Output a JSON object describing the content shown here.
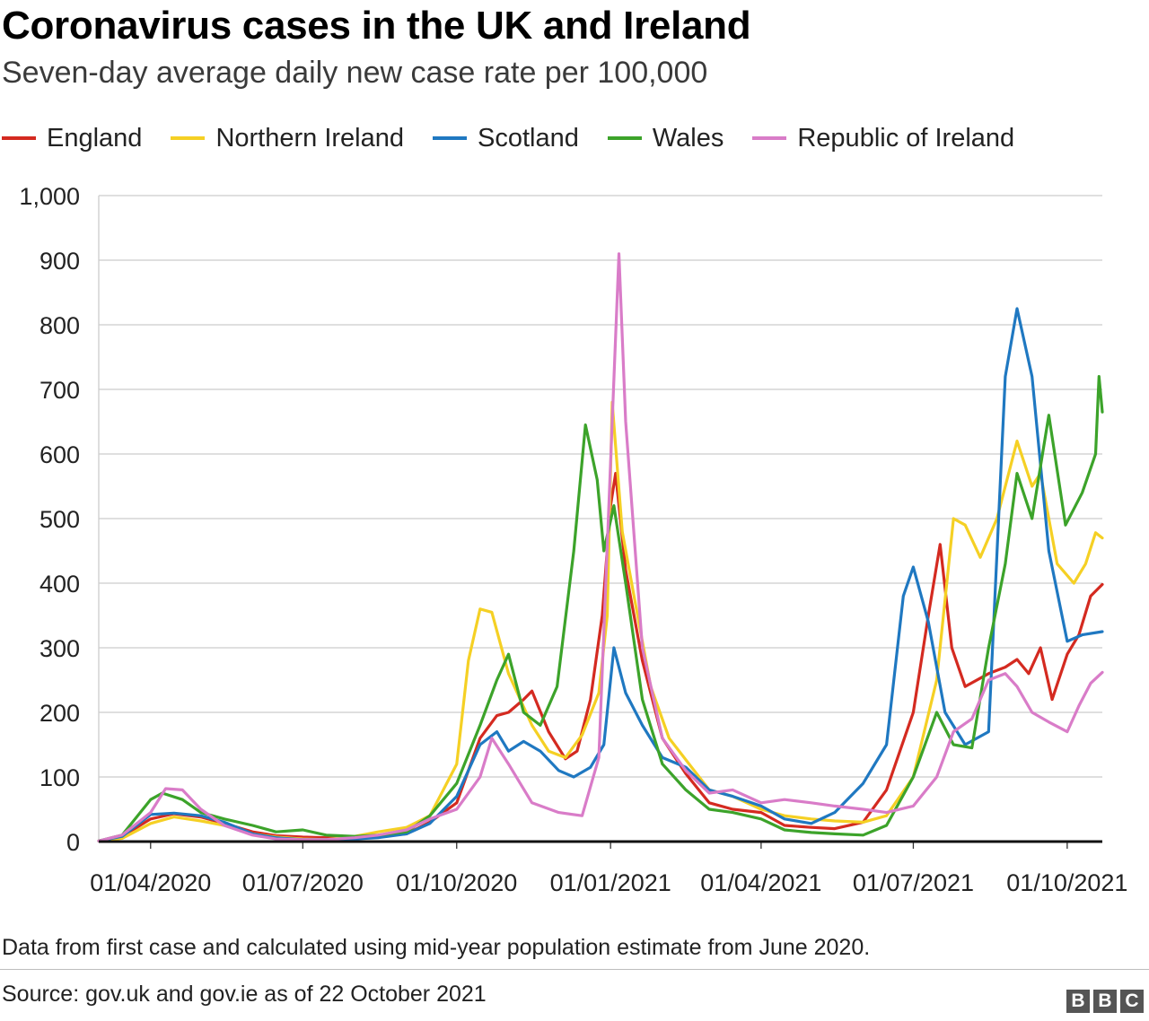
{
  "title": "Coronavirus cases in the UK and Ireland",
  "subtitle": "Seven-day average daily new case rate per 100,000",
  "note": "Data from first case and calculated using mid-year population estimate from June 2020.",
  "source": "Source: gov.uk and gov.ie as of 22 October 2021",
  "logo": [
    "B",
    "B",
    "C"
  ],
  "chart_data": {
    "type": "line",
    "grid": "horizontal",
    "legend_position": "top-left",
    "ylim": [
      0,
      1000
    ],
    "yticks": [
      0,
      100,
      200,
      300,
      400,
      500,
      600,
      700,
      800,
      900,
      1000
    ],
    "ytick_labels": [
      "0",
      "100",
      "200",
      "300",
      "400",
      "500",
      "600",
      "700",
      "800",
      "900",
      "1,000"
    ],
    "xlim": [
      "2020-03-01",
      "2021-10-22"
    ],
    "xticks": [
      "2020-04-01",
      "2020-07-01",
      "2020-10-01",
      "2021-01-01",
      "2021-04-01",
      "2021-07-01",
      "2021-10-01"
    ],
    "xtick_labels": [
      "01/04/2020",
      "01/07/2020",
      "01/10/2020",
      "01/01/2021",
      "01/04/2021",
      "01/07/2021",
      "01/10/2021"
    ],
    "series": [
      {
        "name": "England",
        "color": "#d42a20",
        "points": [
          [
            "2020-03-01",
            1
          ],
          [
            "2020-03-15",
            8
          ],
          [
            "2020-04-01",
            35
          ],
          [
            "2020-04-15",
            43
          ],
          [
            "2020-05-01",
            38
          ],
          [
            "2020-05-15",
            28
          ],
          [
            "2020-06-01",
            15
          ],
          [
            "2020-06-15",
            9
          ],
          [
            "2020-07-01",
            7
          ],
          [
            "2020-07-15",
            6
          ],
          [
            "2020-08-01",
            7
          ],
          [
            "2020-08-15",
            8
          ],
          [
            "2020-09-01",
            12
          ],
          [
            "2020-09-15",
            30
          ],
          [
            "2020-10-01",
            60
          ],
          [
            "2020-10-15",
            160
          ],
          [
            "2020-10-25",
            195
          ],
          [
            "2020-11-01",
            200
          ],
          [
            "2020-11-10",
            220
          ],
          [
            "2020-11-15",
            233
          ],
          [
            "2020-11-25",
            170
          ],
          [
            "2020-12-05",
            128
          ],
          [
            "2020-12-12",
            140
          ],
          [
            "2020-12-20",
            220
          ],
          [
            "2020-12-27",
            350
          ],
          [
            "2021-01-01",
            520
          ],
          [
            "2021-01-04",
            570
          ],
          [
            "2021-01-10",
            420
          ],
          [
            "2021-01-20",
            280
          ],
          [
            "2021-02-01",
            160
          ],
          [
            "2021-02-15",
            105
          ],
          [
            "2021-03-01",
            60
          ],
          [
            "2021-03-15",
            50
          ],
          [
            "2021-04-01",
            45
          ],
          [
            "2021-04-15",
            25
          ],
          [
            "2021-05-01",
            22
          ],
          [
            "2021-05-15",
            20
          ],
          [
            "2021-06-01",
            30
          ],
          [
            "2021-06-15",
            80
          ],
          [
            "2021-07-01",
            200
          ],
          [
            "2021-07-10",
            350
          ],
          [
            "2021-07-17",
            460
          ],
          [
            "2021-07-24",
            300
          ],
          [
            "2021-08-01",
            240
          ],
          [
            "2021-08-15",
            260
          ],
          [
            "2021-08-25",
            270
          ],
          [
            "2021-09-01",
            282
          ],
          [
            "2021-09-08",
            260
          ],
          [
            "2021-09-15",
            300
          ],
          [
            "2021-09-22",
            220
          ],
          [
            "2021-10-01",
            290
          ],
          [
            "2021-10-08",
            320
          ],
          [
            "2021-10-15",
            380
          ],
          [
            "2021-10-22",
            398
          ]
        ]
      },
      {
        "name": "Northern Ireland",
        "color": "#f5d024",
        "points": [
          [
            "2020-03-01",
            1
          ],
          [
            "2020-03-15",
            5
          ],
          [
            "2020-04-01",
            28
          ],
          [
            "2020-04-15",
            38
          ],
          [
            "2020-05-01",
            32
          ],
          [
            "2020-05-15",
            25
          ],
          [
            "2020-06-01",
            12
          ],
          [
            "2020-06-15",
            7
          ],
          [
            "2020-07-01",
            4
          ],
          [
            "2020-07-15",
            3
          ],
          [
            "2020-08-01",
            8
          ],
          [
            "2020-08-15",
            15
          ],
          [
            "2020-09-01",
            22
          ],
          [
            "2020-09-15",
            40
          ],
          [
            "2020-10-01",
            120
          ],
          [
            "2020-10-08",
            280
          ],
          [
            "2020-10-15",
            360
          ],
          [
            "2020-10-22",
            355
          ],
          [
            "2020-11-01",
            260
          ],
          [
            "2020-11-15",
            180
          ],
          [
            "2020-11-25",
            140
          ],
          [
            "2020-12-05",
            130
          ],
          [
            "2020-12-15",
            165
          ],
          [
            "2020-12-25",
            230
          ],
          [
            "2020-12-30",
            350
          ],
          [
            "2021-01-02",
            680
          ],
          [
            "2021-01-08",
            480
          ],
          [
            "2021-01-15",
            380
          ],
          [
            "2021-01-25",
            240
          ],
          [
            "2021-02-05",
            160
          ],
          [
            "2021-02-20",
            110
          ],
          [
            "2021-03-01",
            80
          ],
          [
            "2021-03-15",
            70
          ],
          [
            "2021-04-01",
            50
          ],
          [
            "2021-04-15",
            40
          ],
          [
            "2021-05-01",
            35
          ],
          [
            "2021-05-15",
            32
          ],
          [
            "2021-06-01",
            30
          ],
          [
            "2021-06-15",
            40
          ],
          [
            "2021-07-01",
            100
          ],
          [
            "2021-07-15",
            250
          ],
          [
            "2021-07-25",
            500
          ],
          [
            "2021-08-01",
            490
          ],
          [
            "2021-08-10",
            440
          ],
          [
            "2021-08-20",
            500
          ],
          [
            "2021-09-01",
            620
          ],
          [
            "2021-09-10",
            550
          ],
          [
            "2021-09-15",
            570
          ],
          [
            "2021-09-25",
            430
          ],
          [
            "2021-10-05",
            400
          ],
          [
            "2021-10-12",
            430
          ],
          [
            "2021-10-18",
            478
          ],
          [
            "2021-10-22",
            470
          ]
        ]
      },
      {
        "name": "Scotland",
        "color": "#1f78c1",
        "points": [
          [
            "2020-03-01",
            1
          ],
          [
            "2020-03-15",
            8
          ],
          [
            "2020-04-01",
            42
          ],
          [
            "2020-04-15",
            44
          ],
          [
            "2020-05-01",
            40
          ],
          [
            "2020-05-15",
            30
          ],
          [
            "2020-06-01",
            12
          ],
          [
            "2020-06-15",
            6
          ],
          [
            "2020-07-01",
            3
          ],
          [
            "2020-07-15",
            3
          ],
          [
            "2020-08-01",
            4
          ],
          [
            "2020-08-15",
            6
          ],
          [
            "2020-09-01",
            12
          ],
          [
            "2020-09-15",
            28
          ],
          [
            "2020-10-01",
            70
          ],
          [
            "2020-10-15",
            150
          ],
          [
            "2020-10-25",
            170
          ],
          [
            "2020-11-01",
            140
          ],
          [
            "2020-11-10",
            155
          ],
          [
            "2020-11-20",
            140
          ],
          [
            "2020-12-01",
            110
          ],
          [
            "2020-12-10",
            100
          ],
          [
            "2020-12-20",
            115
          ],
          [
            "2020-12-28",
            150
          ],
          [
            "2021-01-03",
            300
          ],
          [
            "2021-01-10",
            230
          ],
          [
            "2021-01-20",
            180
          ],
          [
            "2021-02-01",
            130
          ],
          [
            "2021-02-15",
            115
          ],
          [
            "2021-03-01",
            80
          ],
          [
            "2021-03-15",
            70
          ],
          [
            "2021-04-01",
            55
          ],
          [
            "2021-04-15",
            35
          ],
          [
            "2021-05-01",
            28
          ],
          [
            "2021-05-15",
            45
          ],
          [
            "2021-06-01",
            90
          ],
          [
            "2021-06-15",
            150
          ],
          [
            "2021-06-25",
            380
          ],
          [
            "2021-07-01",
            425
          ],
          [
            "2021-07-10",
            340
          ],
          [
            "2021-07-20",
            200
          ],
          [
            "2021-08-01",
            150
          ],
          [
            "2021-08-15",
            170
          ],
          [
            "2021-08-25",
            720
          ],
          [
            "2021-09-01",
            825
          ],
          [
            "2021-09-10",
            720
          ],
          [
            "2021-09-20",
            450
          ],
          [
            "2021-10-01",
            310
          ],
          [
            "2021-10-10",
            320
          ],
          [
            "2021-10-22",
            325
          ]
        ]
      },
      {
        "name": "Wales",
        "color": "#3ca32a",
        "points": [
          [
            "2020-03-01",
            1
          ],
          [
            "2020-03-15",
            10
          ],
          [
            "2020-04-01",
            65
          ],
          [
            "2020-04-08",
            75
          ],
          [
            "2020-04-20",
            65
          ],
          [
            "2020-05-01",
            45
          ],
          [
            "2020-05-15",
            35
          ],
          [
            "2020-06-01",
            25
          ],
          [
            "2020-06-15",
            15
          ],
          [
            "2020-07-01",
            18
          ],
          [
            "2020-07-15",
            10
          ],
          [
            "2020-08-01",
            8
          ],
          [
            "2020-08-15",
            10
          ],
          [
            "2020-09-01",
            15
          ],
          [
            "2020-09-15",
            40
          ],
          [
            "2020-10-01",
            90
          ],
          [
            "2020-10-15",
            180
          ],
          [
            "2020-10-25",
            250
          ],
          [
            "2020-11-01",
            290
          ],
          [
            "2020-11-10",
            200
          ],
          [
            "2020-11-20",
            180
          ],
          [
            "2020-11-30",
            240
          ],
          [
            "2020-12-10",
            450
          ],
          [
            "2020-12-17",
            645
          ],
          [
            "2020-12-24",
            560
          ],
          [
            "2020-12-28",
            450
          ],
          [
            "2021-01-03",
            520
          ],
          [
            "2021-01-10",
            400
          ],
          [
            "2021-01-20",
            220
          ],
          [
            "2021-02-01",
            120
          ],
          [
            "2021-02-15",
            80
          ],
          [
            "2021-03-01",
            50
          ],
          [
            "2021-03-15",
            45
          ],
          [
            "2021-04-01",
            35
          ],
          [
            "2021-04-15",
            18
          ],
          [
            "2021-05-01",
            14
          ],
          [
            "2021-05-15",
            12
          ],
          [
            "2021-06-01",
            10
          ],
          [
            "2021-06-15",
            25
          ],
          [
            "2021-07-01",
            100
          ],
          [
            "2021-07-15",
            200
          ],
          [
            "2021-07-25",
            150
          ],
          [
            "2021-08-05",
            145
          ],
          [
            "2021-08-15",
            300
          ],
          [
            "2021-08-25",
            430
          ],
          [
            "2021-09-01",
            570
          ],
          [
            "2021-09-10",
            500
          ],
          [
            "2021-09-20",
            660
          ],
          [
            "2021-09-30",
            490
          ],
          [
            "2021-10-10",
            540
          ],
          [
            "2021-10-18",
            600
          ],
          [
            "2021-10-20",
            720
          ],
          [
            "2021-10-22",
            665
          ]
        ]
      },
      {
        "name": "Republic of Ireland",
        "color": "#d97cc8",
        "points": [
          [
            "2020-03-01",
            1
          ],
          [
            "2020-03-15",
            10
          ],
          [
            "2020-04-01",
            45
          ],
          [
            "2020-04-10",
            82
          ],
          [
            "2020-04-20",
            80
          ],
          [
            "2020-05-01",
            50
          ],
          [
            "2020-05-15",
            25
          ],
          [
            "2020-06-01",
            10
          ],
          [
            "2020-06-15",
            4
          ],
          [
            "2020-07-01",
            3
          ],
          [
            "2020-07-15",
            3
          ],
          [
            "2020-08-01",
            6
          ],
          [
            "2020-08-15",
            10
          ],
          [
            "2020-09-01",
            18
          ],
          [
            "2020-09-15",
            35
          ],
          [
            "2020-10-01",
            50
          ],
          [
            "2020-10-15",
            100
          ],
          [
            "2020-10-22",
            160
          ],
          [
            "2020-11-01",
            120
          ],
          [
            "2020-11-15",
            60
          ],
          [
            "2020-12-01",
            45
          ],
          [
            "2020-12-15",
            40
          ],
          [
            "2020-12-25",
            130
          ],
          [
            "2021-01-02",
            650
          ],
          [
            "2021-01-06",
            910
          ],
          [
            "2021-01-10",
            650
          ],
          [
            "2021-01-20",
            300
          ],
          [
            "2021-02-01",
            160
          ],
          [
            "2021-02-15",
            110
          ],
          [
            "2021-03-01",
            75
          ],
          [
            "2021-03-15",
            80
          ],
          [
            "2021-04-01",
            60
          ],
          [
            "2021-04-15",
            65
          ],
          [
            "2021-05-01",
            60
          ],
          [
            "2021-05-15",
            55
          ],
          [
            "2021-06-01",
            50
          ],
          [
            "2021-06-15",
            45
          ],
          [
            "2021-07-01",
            55
          ],
          [
            "2021-07-15",
            100
          ],
          [
            "2021-07-25",
            170
          ],
          [
            "2021-08-05",
            190
          ],
          [
            "2021-08-15",
            250
          ],
          [
            "2021-08-25",
            260
          ],
          [
            "2021-09-01",
            240
          ],
          [
            "2021-09-10",
            200
          ],
          [
            "2021-09-20",
            185
          ],
          [
            "2021-10-01",
            170
          ],
          [
            "2021-10-08",
            210
          ],
          [
            "2021-10-15",
            245
          ],
          [
            "2021-10-22",
            262
          ]
        ]
      }
    ]
  }
}
